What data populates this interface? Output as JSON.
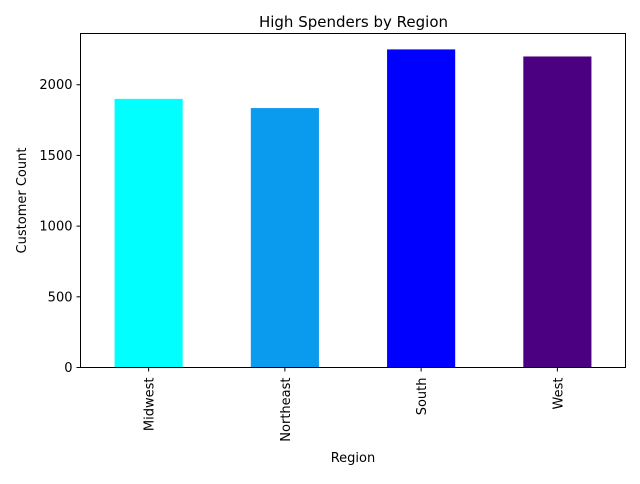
{
  "chart_data": {
    "type": "bar",
    "title": "High Spenders by Region",
    "xlabel": "Region",
    "ylabel": "Customer Count",
    "categories": [
      "Midwest",
      "Northeast",
      "South",
      "West"
    ],
    "values": [
      1900,
      1835,
      2250,
      2200
    ],
    "colors": [
      "#00ffff",
      "#0a9bef",
      "#0000ff",
      "#4b0082"
    ],
    "ylim": [
      0,
      2362.5
    ],
    "yticks": [
      0,
      500,
      1000,
      1500,
      2000
    ],
    "grid": false,
    "legend": "none"
  }
}
